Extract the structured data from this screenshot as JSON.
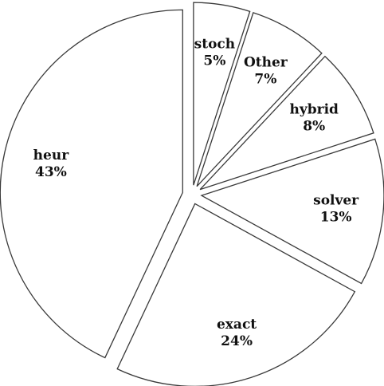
{
  "chart_data": {
    "type": "pie",
    "exploded": true,
    "start_at": "top",
    "direction": "clockwise",
    "slices": [
      {
        "name": "stoch",
        "value": 5,
        "label": "5%"
      },
      {
        "name": "Other",
        "value": 7,
        "label": "7%"
      },
      {
        "name": "hybrid",
        "value": 8,
        "label": "8%"
      },
      {
        "name": "solver",
        "value": 13,
        "label": "13%"
      },
      {
        "name": "exact",
        "value": 24,
        "label": "24%"
      },
      {
        "name": "heur",
        "value": 43,
        "label": "43%"
      }
    ],
    "colors": {
      "fill": "#ffffff",
      "stroke": "#3a3a3a",
      "text": "#111111"
    }
  }
}
